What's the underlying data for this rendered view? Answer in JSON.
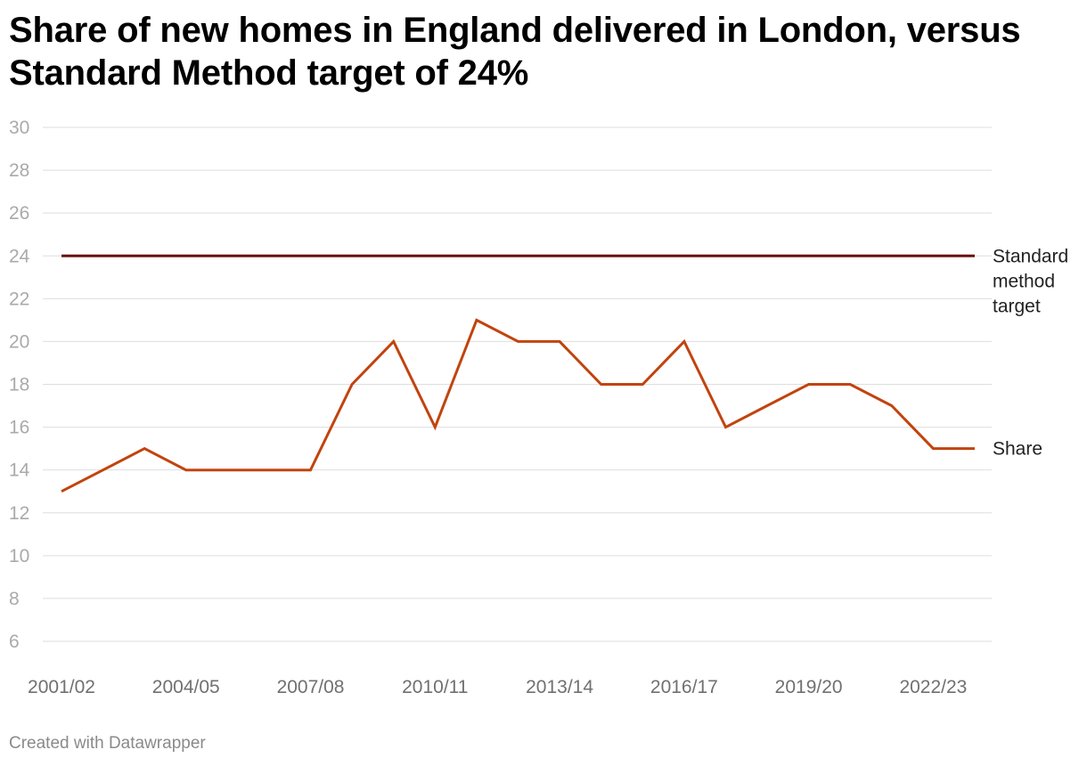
{
  "chart_data": {
    "type": "line",
    "title": "Share of new homes in England delivered in London, versus Standard Method target of 24%",
    "xlabel": "",
    "ylabel": "",
    "ylim": [
      6,
      30
    ],
    "yticks": [
      6,
      8,
      10,
      12,
      14,
      16,
      18,
      20,
      22,
      24,
      26,
      28,
      30
    ],
    "x": [
      "2001/02",
      "2002/03",
      "2003/04",
      "2004/05",
      "2005/06",
      "2006/07",
      "2007/08",
      "2008/09",
      "2009/10",
      "2010/11",
      "2011/12",
      "2012/13",
      "2013/14",
      "2014/15",
      "2015/16",
      "2016/17",
      "2017/18",
      "2018/19",
      "2019/20",
      "2020/21",
      "2021/22",
      "2022/23",
      "2023/24"
    ],
    "xtick_labels": [
      "2001/02",
      "2004/05",
      "2007/08",
      "2010/11",
      "2013/14",
      "2016/17",
      "2019/20",
      "2022/23"
    ],
    "grid": true,
    "series": [
      {
        "name": "Standard method target",
        "label_lines": [
          "Standard",
          "method",
          "target"
        ],
        "color": "#6b0f0a",
        "values": [
          24,
          24,
          24,
          24,
          24,
          24,
          24,
          24,
          24,
          24,
          24,
          24,
          24,
          24,
          24,
          24,
          24,
          24,
          24,
          24,
          24,
          24,
          24
        ]
      },
      {
        "name": "Share",
        "label_lines": [
          "Share"
        ],
        "color": "#c1440e",
        "values": [
          13,
          14,
          15,
          14,
          14,
          14,
          14,
          18,
          20,
          16,
          21,
          20,
          20,
          18,
          18,
          20,
          16,
          17,
          18,
          18,
          17,
          15,
          15
        ]
      }
    ]
  },
  "footer": {
    "credit": "Created with Datawrapper"
  }
}
